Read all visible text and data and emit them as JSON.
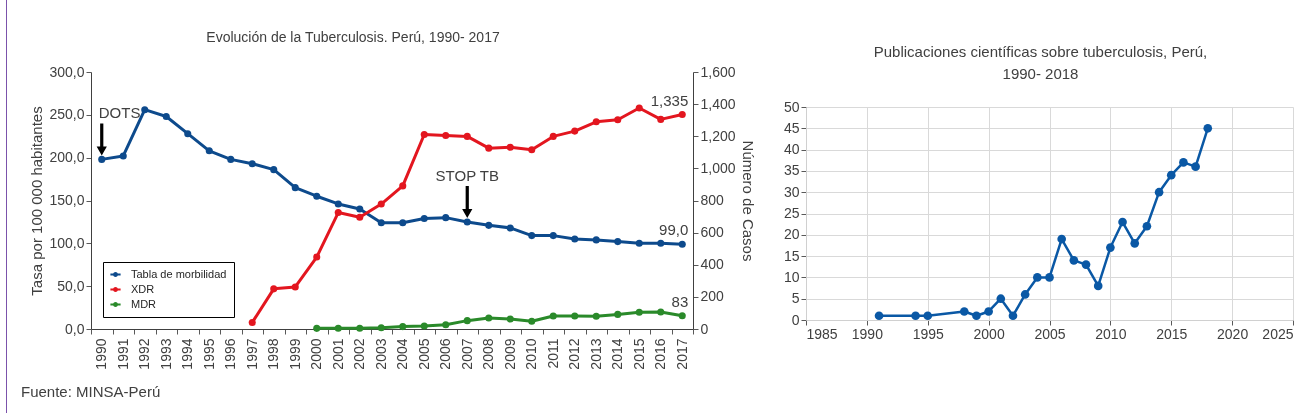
{
  "chart_data": [
    {
      "type": "line",
      "title": "Evolución de la Tuberculosis. Perú, 1990- 2017",
      "ylabel": "Tasa por 100 000 habitantes",
      "y2label": "Número de Casos",
      "categories": [
        "1990",
        "1991",
        "1992",
        "1993",
        "1994",
        "1995",
        "1996",
        "1997",
        "1998",
        "1999",
        "2000",
        "2001",
        "2002",
        "2003",
        "2004",
        "2005",
        "2006",
        "2007",
        "2008",
        "2009",
        "2010",
        "2011",
        "2012",
        "2013",
        "2014",
        "2015",
        "2016",
        "2017"
      ],
      "series": [
        {
          "name": "Tabla de morbilidad",
          "color": "#0d4a8c",
          "values": [
            198,
            202,
            256,
            248,
            228,
            208,
            198,
            193,
            186,
            165,
            155,
            146,
            140,
            124,
            124,
            129,
            130,
            125,
            121,
            118,
            109,
            109,
            105,
            104,
            102,
            100,
            100,
            99
          ],
          "value_labels": [
            null,
            null,
            null,
            null,
            null,
            null,
            null,
            null,
            null,
            null,
            null,
            null,
            null,
            null,
            null,
            null,
            null,
            null,
            null,
            null,
            null,
            null,
            null,
            null,
            null,
            null,
            null,
            "99,0"
          ]
        },
        {
          "name": "XDR",
          "color": "#e3161f",
          "axis": "y2",
          "values": [
            null,
            null,
            null,
            null,
            null,
            null,
            null,
            41,
            250,
            262,
            448,
            725,
            696,
            778,
            891,
            1211,
            1205,
            1199,
            1126,
            1132,
            1116,
            1199,
            1232,
            1290,
            1303,
            1376,
            1305,
            1335
          ],
          "value_labels": [
            null,
            null,
            null,
            null,
            null,
            null,
            null,
            null,
            null,
            null,
            null,
            null,
            null,
            null,
            null,
            null,
            null,
            null,
            null,
            null,
            null,
            null,
            null,
            null,
            null,
            null,
            null,
            "1,335"
          ]
        },
        {
          "name": "MDR",
          "color": "#2a8a2a",
          "axis": "y2",
          "values": [
            null,
            null,
            null,
            null,
            null,
            null,
            null,
            null,
            null,
            null,
            4,
            5,
            5,
            8,
            15,
            19,
            27,
            52,
            69,
            62,
            48,
            81,
            81,
            79,
            91,
            104,
            106,
            83
          ],
          "value_labels": [
            null,
            null,
            null,
            null,
            null,
            null,
            null,
            null,
            null,
            null,
            null,
            null,
            null,
            null,
            null,
            null,
            null,
            null,
            null,
            null,
            null,
            null,
            null,
            null,
            null,
            null,
            null,
            "83"
          ]
        }
      ],
      "ylim": [
        0,
        300
      ],
      "yticks": [
        {
          "value": 0,
          "label": "0,0"
        },
        {
          "value": 50,
          "label": "50,0"
        },
        {
          "value": 100,
          "label": "100,0"
        },
        {
          "value": 150,
          "label": "150,0"
        },
        {
          "value": 200,
          "label": "200,0"
        },
        {
          "value": 250,
          "label": "250,0"
        },
        {
          "value": 300,
          "label": "300,0"
        }
      ],
      "y2lim": [
        0,
        1600
      ],
      "y2ticks": [
        0,
        200,
        400,
        600,
        800,
        {
          "value": 1000,
          "label": "1,000"
        },
        {
          "value": 1200,
          "label": "1,200"
        },
        {
          "value": 1400,
          "label": "1,400"
        },
        {
          "value": 1600,
          "label": "1,600"
        }
      ],
      "legend": "bottom left",
      "marker": "circle",
      "annotations": [
        {
          "text": "DOTS",
          "x": "1990",
          "y": 198
        },
        {
          "text": "STOP TB",
          "x": "2007",
          "y": 125
        },
        "Fuente: MINSA-Perú"
      ]
    },
    {
      "type": "line",
      "title": "Publicaciones científicas sobre tuberculosis, Perú,\n1990- 2018",
      "series": [
        {
          "color": "#0a58a5",
          "x": [
            1991,
            1994,
            1995,
            1998,
            1999,
            2000,
            2001,
            2002,
            2003,
            2004,
            2005,
            2006,
            2007,
            2008,
            2009,
            2010,
            2011,
            2012,
            2013,
            2014,
            2015,
            2016,
            2017,
            2018
          ],
          "values": [
            1,
            1,
            1,
            2,
            1,
            2,
            5,
            1,
            6,
            10,
            10,
            19,
            14,
            13,
            8,
            17,
            23,
            18,
            22,
            30,
            34,
            37,
            36,
            45
          ]
        }
      ],
      "xlim": [
        1985,
        2025
      ],
      "xticks": [
        1985,
        1990,
        1995,
        2000,
        2005,
        2010,
        2015,
        2020,
        2025
      ],
      "ylim": [
        0,
        50
      ],
      "yticks": [
        0,
        5,
        10,
        15,
        20,
        25,
        30,
        35,
        40,
        45,
        50
      ],
      "grid": true,
      "marker": "circle"
    }
  ]
}
